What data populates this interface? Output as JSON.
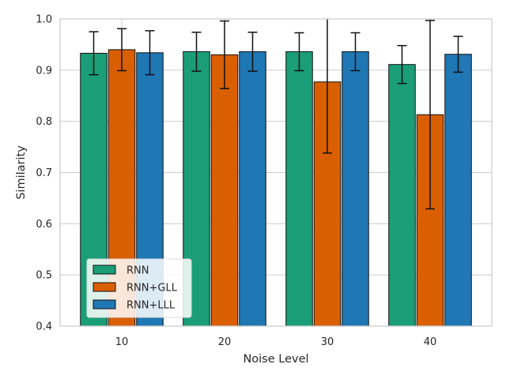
{
  "chart_data": {
    "type": "bar",
    "title": "",
    "xlabel": "Noise Level",
    "ylabel": "Similarity",
    "categories": [
      "10",
      "20",
      "30",
      "40"
    ],
    "ylim": [
      0.4,
      1.0
    ],
    "yticks": [
      "0.4",
      "0.5",
      "0.6",
      "0.7",
      "0.8",
      "0.9",
      "1.0"
    ],
    "grid": true,
    "legend_position": "lower-left",
    "series": [
      {
        "name": "RNN",
        "color": "#1b9e77",
        "values": [
          0.933,
          0.936,
          0.936,
          0.911
        ],
        "errors": [
          0.042,
          0.038,
          0.037,
          0.037
        ]
      },
      {
        "name": "RNN+GLL",
        "color": "#d95f02",
        "values": [
          0.94,
          0.93,
          0.877,
          0.813
        ],
        "errors": [
          0.041,
          0.066,
          0.139,
          0.184
        ]
      },
      {
        "name": "RNN+LLL",
        "color": "#1f77b4",
        "values": [
          0.934,
          0.936,
          0.936,
          0.931
        ],
        "errors": [
          0.043,
          0.038,
          0.037,
          0.035
        ]
      }
    ]
  }
}
